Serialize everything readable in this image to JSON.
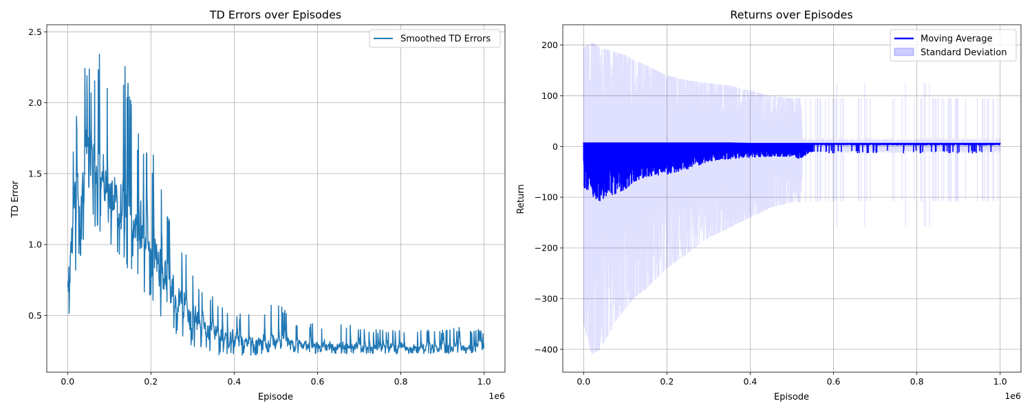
{
  "chart_data": [
    {
      "type": "line",
      "title": "TD Errors over Episodes",
      "xlabel": "Episode",
      "ylabel": "TD Error",
      "x_offset_label": "1e6",
      "xlim": [
        -0.05,
        1.05
      ],
      "ylim": [
        0.1,
        2.55
      ],
      "xticks": [
        0.0,
        0.2,
        0.4,
        0.6,
        0.8,
        1.0
      ],
      "xtick_labels": [
        "0.0",
        "0.2",
        "0.4",
        "0.6",
        "0.8",
        "1.0"
      ],
      "yticks": [
        0.5,
        1.0,
        1.5,
        2.0,
        2.5
      ],
      "ytick_labels": [
        "0.5",
        "1.0",
        "1.5",
        "2.0",
        "2.5"
      ],
      "grid": true,
      "legend_position": "top-right",
      "series": [
        {
          "name": "Smoothed TD Errors",
          "color": "#1f77b4",
          "x": [
            0.0,
            0.01,
            0.02,
            0.03,
            0.04,
            0.05,
            0.06,
            0.07,
            0.08,
            0.09,
            0.1,
            0.12,
            0.14,
            0.16,
            0.18,
            0.2,
            0.22,
            0.24,
            0.26,
            0.28,
            0.3,
            0.32,
            0.34,
            0.36,
            0.38,
            0.4,
            0.45,
            0.5,
            0.55,
            0.6,
            0.65,
            0.7,
            0.75,
            0.8,
            0.85,
            0.9,
            0.95,
            1.0
          ],
          "y_center": [
            0.6,
            1.15,
            1.3,
            1.38,
            1.45,
            1.5,
            1.55,
            1.57,
            1.5,
            1.42,
            1.35,
            1.28,
            1.22,
            1.15,
            1.05,
            0.95,
            0.85,
            0.73,
            0.64,
            0.56,
            0.49,
            0.44,
            0.4,
            0.37,
            0.35,
            0.33,
            0.31,
            0.3,
            0.29,
            0.285,
            0.28,
            0.28,
            0.275,
            0.275,
            0.275,
            0.275,
            0.275,
            0.275
          ],
          "y_low": [
            0.38,
            0.65,
            0.8,
            0.9,
            1.0,
            1.05,
            1.1,
            1.12,
            1.08,
            1.0,
            0.95,
            0.88,
            0.82,
            0.75,
            0.68,
            0.6,
            0.5,
            0.42,
            0.36,
            0.32,
            0.28,
            0.25,
            0.23,
            0.22,
            0.21,
            0.21,
            0.22,
            0.23,
            0.23,
            0.23,
            0.23,
            0.23,
            0.23,
            0.23,
            0.23,
            0.23,
            0.23,
            0.23
          ],
          "y_high": [
            1.22,
            1.6,
            1.95,
            2.0,
            2.33,
            2.33,
            2.2,
            2.35,
            2.43,
            2.3,
            2.05,
            1.95,
            2.36,
            1.8,
            1.8,
            1.7,
            1.55,
            1.3,
            1.02,
            0.95,
            0.85,
            0.7,
            0.65,
            0.62,
            0.55,
            0.52,
            0.5,
            0.63,
            0.45,
            0.44,
            0.45,
            0.42,
            0.4,
            0.4,
            0.4,
            0.4,
            0.42,
            0.4
          ]
        }
      ]
    },
    {
      "type": "area",
      "title": "Returns over Episodes",
      "xlabel": "Episode",
      "ylabel": "Return",
      "x_offset_label": "1e6",
      "xlim": [
        -0.05,
        1.05
      ],
      "ylim": [
        -445,
        240
      ],
      "xticks": [
        0.0,
        0.2,
        0.4,
        0.6,
        0.8,
        1.0
      ],
      "xtick_labels": [
        "0.0",
        "0.2",
        "0.4",
        "0.6",
        "0.8",
        "1.0"
      ],
      "yticks": [
        -400,
        -300,
        -200,
        -100,
        0,
        100,
        200
      ],
      "ytick_labels": [
        "−400",
        "−300",
        "−200",
        "−100",
        "0",
        "100",
        "200"
      ],
      "grid": true,
      "legend_position": "top-right",
      "series": [
        {
          "name": "Moving Average",
          "color": "#0000ff",
          "x": [
            0.0,
            0.02,
            0.04,
            0.06,
            0.08,
            0.1,
            0.12,
            0.15,
            0.2,
            0.25,
            0.3,
            0.35,
            0.4,
            0.45,
            0.5,
            0.52,
            0.55,
            0.6,
            0.65,
            0.7,
            0.8,
            0.9,
            0.95,
            1.0
          ],
          "y_high": [
            8,
            8,
            8,
            8,
            8,
            8,
            8,
            8,
            8,
            8,
            8,
            8,
            7,
            7,
            7,
            7,
            7,
            7,
            7,
            7,
            7,
            7,
            7,
            7
          ],
          "y_low": [
            -80,
            -100,
            -108,
            -100,
            -92,
            -85,
            -70,
            -60,
            -55,
            -45,
            -30,
            -25,
            -22,
            -20,
            -20,
            -25,
            -10,
            -8,
            -8,
            -8,
            -8,
            -8,
            -15,
            2
          ]
        },
        {
          "name": "Standard Deviation",
          "color": "#0000ff",
          "opacity": 0.2,
          "x": [
            0.0,
            0.02,
            0.04,
            0.06,
            0.08,
            0.1,
            0.12,
            0.15,
            0.2,
            0.25,
            0.3,
            0.35,
            0.4,
            0.45,
            0.5,
            0.52,
            0.53,
            0.6,
            0.65,
            0.7,
            0.8,
            0.9,
            0.95,
            1.0
          ],
          "upper": [
            195,
            205,
            195,
            190,
            185,
            180,
            170,
            160,
            140,
            130,
            125,
            120,
            110,
            100,
            95,
            95,
            20,
            15,
            15,
            15,
            15,
            15,
            15,
            15
          ],
          "lower": [
            -350,
            -410,
            -400,
            -370,
            -340,
            -320,
            -300,
            -280,
            -240,
            -210,
            -180,
            -160,
            -140,
            -120,
            -110,
            -110,
            -15,
            -12,
            -12,
            -12,
            -12,
            -12,
            -12,
            -12
          ]
        }
      ]
    }
  ]
}
